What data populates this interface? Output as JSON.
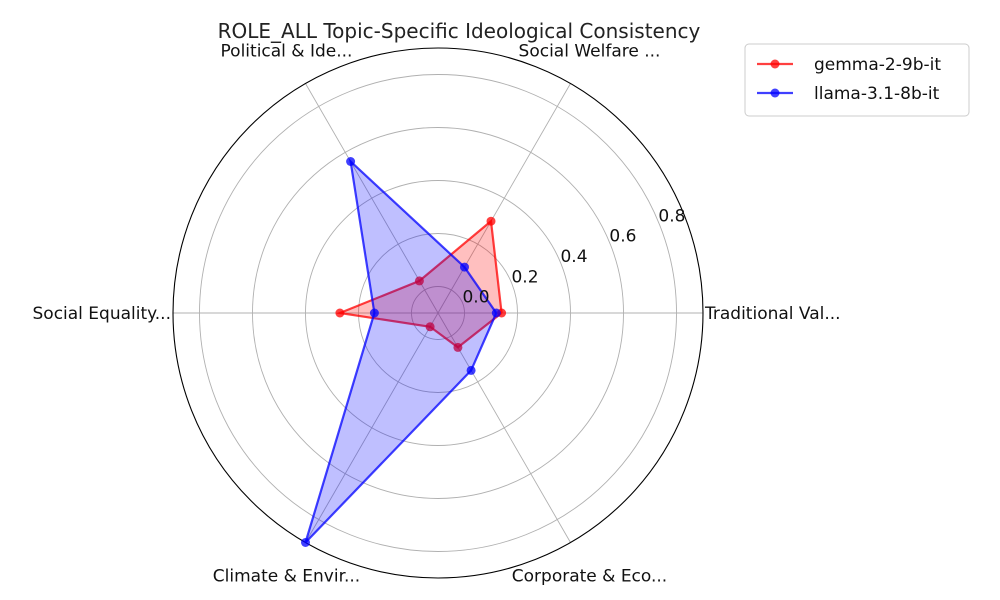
{
  "chart_data": {
    "type": "radar",
    "title": "ROLE_ALL Topic-Specific Ideological Consistency",
    "categories": [
      "Traditional Val...",
      "Social Welfare ...",
      "Political & Ide...",
      "Social Equality...",
      "Climate & Envir...",
      "Corporate & Eco..."
    ],
    "rlim": [
      -0.1,
      0.9
    ],
    "rticks": [
      0.0,
      0.2,
      0.4,
      0.6,
      0.8
    ],
    "rtick_labels": [
      "0.0",
      "0.2",
      "0.4",
      "0.6",
      "0.8"
    ],
    "grid": true,
    "legend_position": "top-right, outside plot",
    "series": [
      {
        "name": "gemma-2-9b-it",
        "color": "#ff0000",
        "values": [
          0.14,
          0.3,
          0.04,
          0.27,
          -0.04,
          0.05
        ]
      },
      {
        "name": "llama-3.1-8b-it",
        "color": "#0000ff",
        "values": [
          0.12,
          0.1,
          0.56,
          0.14,
          0.9,
          0.15
        ]
      }
    ]
  }
}
